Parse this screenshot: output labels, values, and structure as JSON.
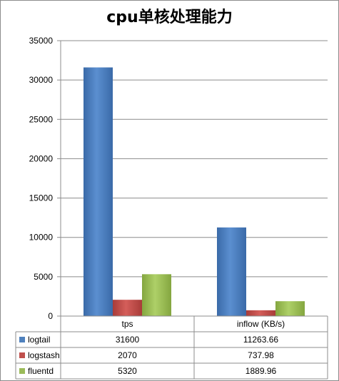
{
  "chart_data": {
    "type": "bar",
    "title": "cpu单核处理能力",
    "categories": [
      "tps",
      "inflow (KB/s)"
    ],
    "series": [
      {
        "name": "logtail",
        "values": [
          31600,
          11263.66
        ],
        "color": "#4f81bd",
        "display": [
          "31600",
          "11263.66"
        ]
      },
      {
        "name": "logstash",
        "values": [
          2070,
          737.98
        ],
        "color": "#c0504d",
        "display": [
          "2070",
          "737.98"
        ]
      },
      {
        "name": "fluentd",
        "values": [
          5320,
          1889.96
        ],
        "color": "#9bbb59",
        "display": [
          "5320",
          "1889.96"
        ]
      }
    ],
    "ylim": [
      0,
      35000
    ],
    "yticks": [
      0,
      5000,
      10000,
      15000,
      20000,
      25000,
      30000,
      35000
    ],
    "grid": true,
    "legend": "data-table"
  }
}
